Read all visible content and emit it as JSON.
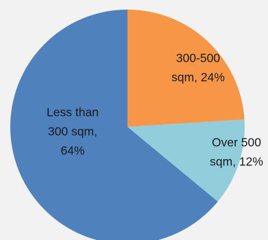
{
  "chart_data": {
    "type": "pie",
    "slices": [
      {
        "label_lines": [
          "300-500",
          "sqm, 24%"
        ],
        "category": "300-500 sqm",
        "value": 24,
        "color": "#f79646"
      },
      {
        "label_lines": [
          "Over 500",
          "sqm, 12%"
        ],
        "category": "Over 500 sqm",
        "value": 12,
        "color": "#92cddc"
      },
      {
        "label_lines": [
          "Less than",
          "300 sqm,",
          "64%"
        ],
        "category": "Less than 300 sqm",
        "value": 64,
        "color": "#4f81bd"
      }
    ],
    "start_angle_deg": 0,
    "direction": "clockwise",
    "title": "",
    "legend": "none"
  }
}
